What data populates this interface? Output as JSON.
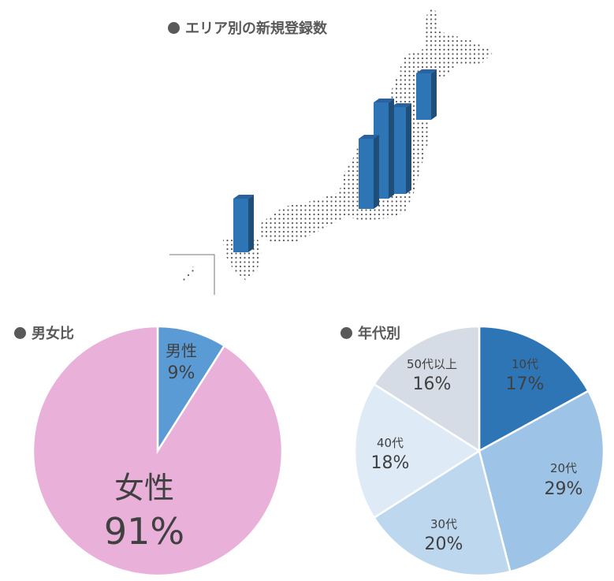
{
  "headers": {
    "area": "エリア別の新規登録数",
    "gender": "男女比",
    "age": "年代別"
  },
  "chart_data": [
    {
      "type": "bar",
      "title": "エリア別の新規登録数",
      "note": "3D bars on a dotted map of Japan; no values printed"
    },
    {
      "type": "pie",
      "title": "男女比",
      "start": "top",
      "direction": "clockwise",
      "slices": [
        {
          "label": "男性",
          "value": 9,
          "display": "9%",
          "color": "#5b9bd5"
        },
        {
          "label": "女性",
          "value": 91,
          "display": "91%",
          "color": "#e9b0d9"
        }
      ]
    },
    {
      "type": "pie",
      "title": "年代別",
      "start": "top",
      "direction": "clockwise",
      "slices": [
        {
          "label": "10代",
          "value": 17,
          "display": "17%",
          "color": "#2e75b6"
        },
        {
          "label": "20代",
          "value": 29,
          "display": "29%",
          "color": "#9dc3e6"
        },
        {
          "label": "30代",
          "value": 20,
          "display": "20%",
          "color": "#bdd7ee"
        },
        {
          "label": "40代",
          "value": 18,
          "display": "18%",
          "color": "#deebf7"
        },
        {
          "label": "50代以上",
          "value": 16,
          "display": "16%",
          "color": "#d6dce5"
        }
      ]
    }
  ],
  "colors": {
    "bar_front": "#2e75b6",
    "bar_side": "#1f4e79",
    "bar_top": "#2862a0",
    "map_dots": "#595959",
    "text": "#404040"
  }
}
